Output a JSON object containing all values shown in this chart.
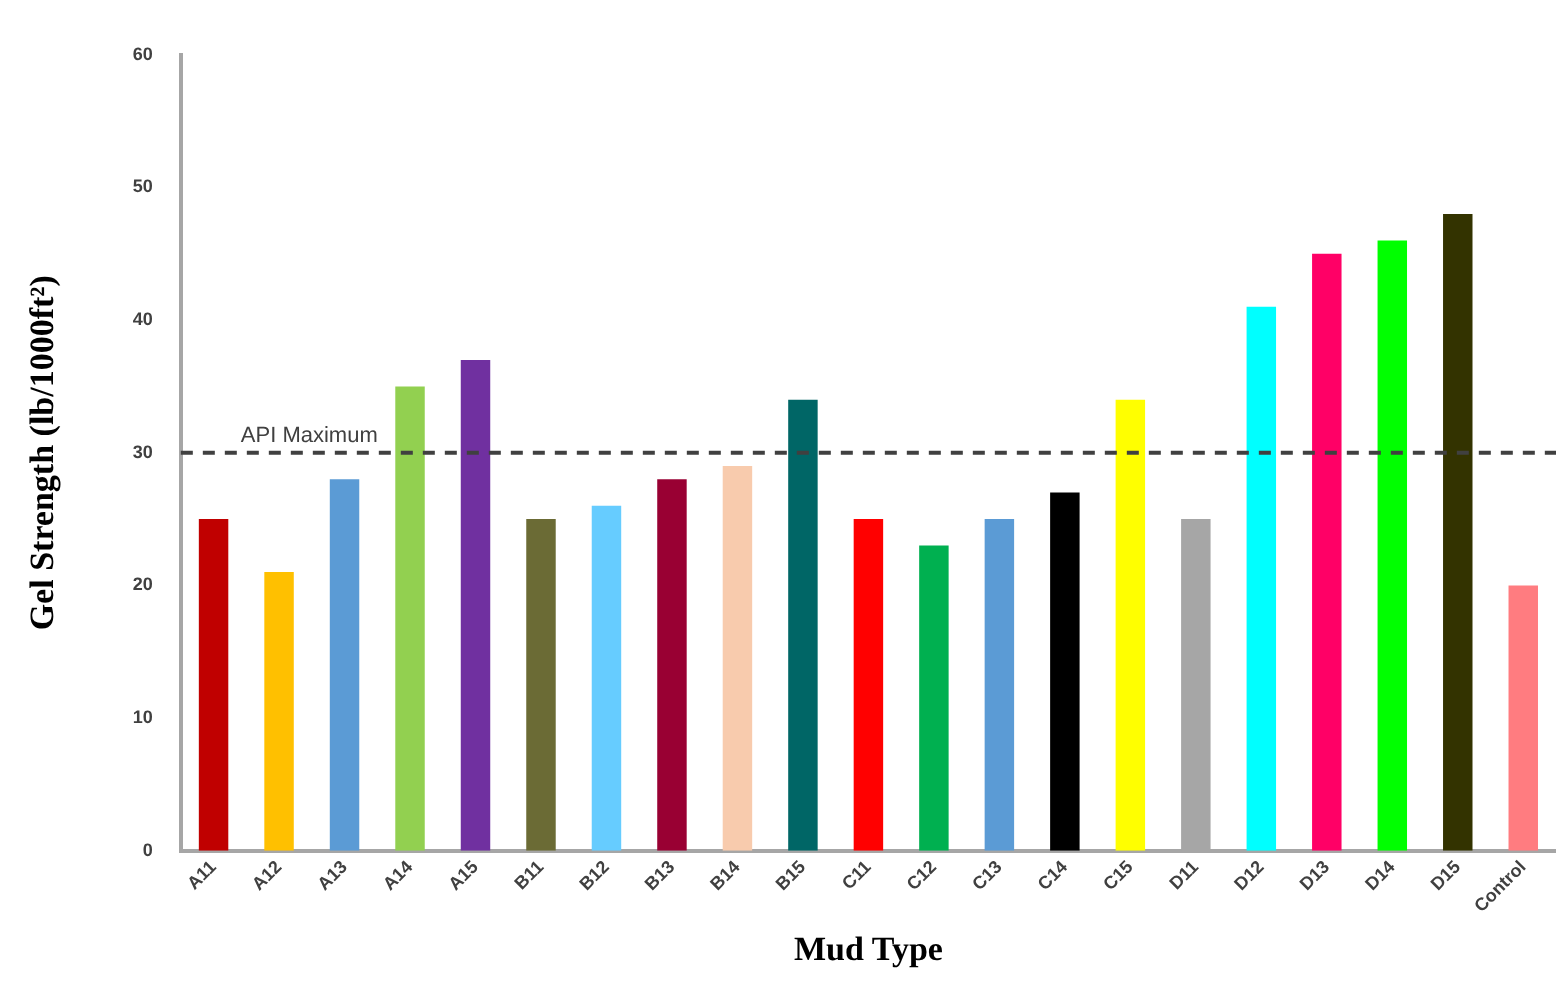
{
  "chart_data": {
    "type": "bar",
    "xlabel": "Mud Type",
    "ylabel": "Gel Strength (lb/1000ft²)",
    "categories": [
      "A11",
      "A12",
      "A13",
      "A14",
      "A15",
      "B11",
      "B12",
      "B13",
      "B14",
      "B15",
      "C11",
      "C12",
      "C13",
      "C14",
      "C15",
      "D11",
      "D12",
      "D13",
      "D14",
      "D15",
      "Control"
    ],
    "values": [
      25,
      21,
      28,
      35,
      37,
      25,
      26,
      28,
      29,
      34,
      25,
      23,
      25,
      27,
      34,
      25,
      41,
      45,
      46,
      48,
      20
    ],
    "colors": [
      "#c00000",
      "#ffc000",
      "#5b9bd5",
      "#92d050",
      "#7030a0",
      "#6b6b35",
      "#66ccff",
      "#990033",
      "#f8cbad",
      "#006666",
      "#ff0000",
      "#00b050",
      "#5b9bd5",
      "#000000",
      "#ffff00",
      "#a6a6a6",
      "#00ffff",
      "#ff0066",
      "#00ff00",
      "#333300",
      "#ff7c80"
    ],
    "ylim": [
      0,
      60
    ],
    "yticks": [
      0,
      10,
      20,
      30,
      40,
      50,
      60
    ],
    "grid": false,
    "legend": false,
    "ref_lines": [
      {
        "axis": "y",
        "value": 30,
        "label": "API Maximum",
        "color": "#404040",
        "line_style": "dashed"
      }
    ]
  }
}
